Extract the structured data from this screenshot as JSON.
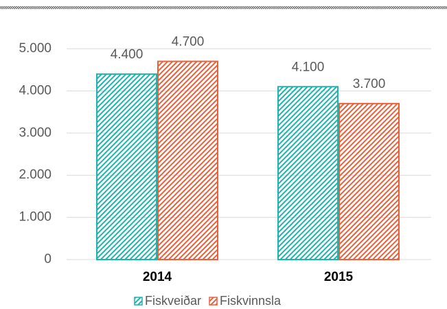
{
  "chart_data": {
    "type": "bar",
    "categories": [
      "2014",
      "2015"
    ],
    "series": [
      {
        "name": "Fiskveiðar",
        "color": "#1fb3ad",
        "values": [
          4400,
          4100
        ],
        "value_labels": [
          "4.400",
          "4.100"
        ]
      },
      {
        "name": "Fiskvinnsla",
        "color": "#e9603b",
        "values": [
          4700,
          3700
        ],
        "value_labels": [
          "4.700",
          "3.700"
        ]
      }
    ],
    "ylim": [
      0,
      5000
    ],
    "yticks": [
      0,
      {
        "value": 1000,
        "label": "1.000"
      },
      {
        "value": 2000,
        "label": "2.000"
      },
      {
        "value": 3000,
        "label": "3.000"
      },
      {
        "value": 4000,
        "label": "4.000"
      },
      {
        "value": 5000,
        "label": "5.000"
      }
    ],
    "grid": true,
    "legend": "bottom"
  }
}
